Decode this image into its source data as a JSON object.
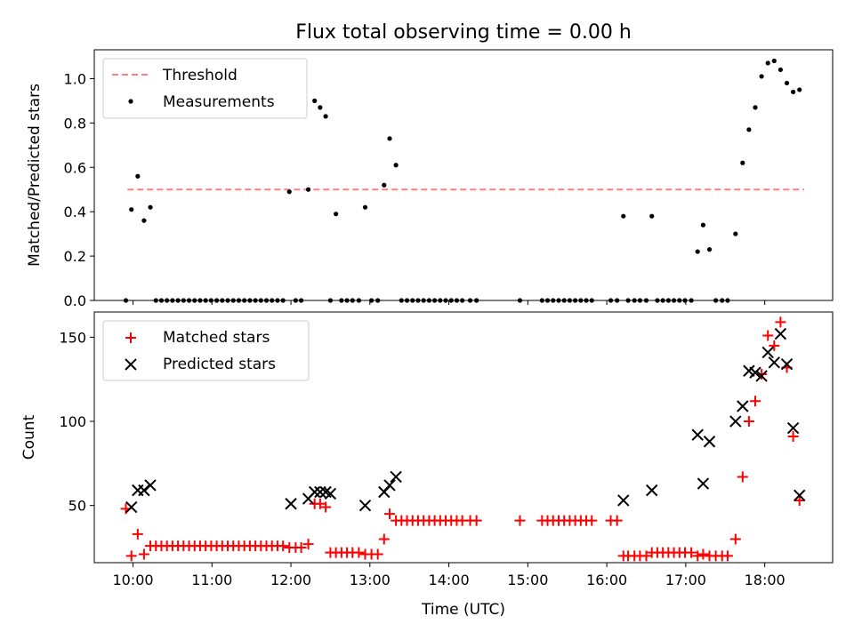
{
  "chart_data": [
    {
      "type": "scatter",
      "title": "Flux total observing time = 0.00 h",
      "xlabel": "",
      "ylabel": "Matched/Predicted stars",
      "xlim": [
        9.51,
        18.86
      ],
      "ylim": [
        0.0,
        1.13
      ],
      "yticks": [
        "0.0",
        "0.2",
        "0.4",
        "0.6",
        "0.8",
        "1.0"
      ],
      "xticks": [
        "10:00",
        "11:00",
        "12:00",
        "13:00",
        "14:00",
        "15:00",
        "16:00",
        "17:00",
        "18:00"
      ],
      "legend": {
        "position": "top-left",
        "entries": [
          "Threshold",
          "Measurements"
        ]
      },
      "threshold": {
        "name": "Threshold",
        "value": 0.5,
        "x_range": [
          9.93,
          18.5
        ],
        "color": "#ff7f7f"
      },
      "series": [
        {
          "name": "Measurements",
          "color": "#000000",
          "x": [
            9.91,
            9.98,
            10.06,
            10.14,
            10.22,
            10.29,
            10.36,
            10.43,
            10.5,
            10.57,
            10.64,
            10.71,
            10.78,
            10.85,
            10.92,
            10.99,
            11.06,
            11.13,
            11.2,
            11.27,
            11.34,
            11.41,
            11.48,
            11.55,
            11.62,
            11.69,
            11.76,
            11.83,
            11.9,
            11.98,
            12.06,
            12.13,
            12.22,
            12.3,
            12.37,
            12.44,
            12.5,
            12.57,
            12.64,
            12.71,
            12.78,
            12.86,
            12.94,
            13.02,
            13.1,
            13.18,
            13.25,
            13.33,
            13.4,
            13.47,
            13.54,
            13.61,
            13.68,
            13.75,
            13.82,
            13.89,
            13.96,
            14.03,
            14.1,
            14.17,
            14.27,
            14.35,
            14.9,
            15.18,
            15.25,
            15.32,
            15.39,
            15.46,
            15.53,
            15.6,
            15.67,
            15.74,
            15.81,
            16.05,
            16.13,
            16.21,
            16.27,
            16.35,
            16.42,
            16.5,
            16.57,
            16.64,
            16.71,
            16.78,
            16.85,
            16.92,
            16.99,
            17.07,
            17.15,
            17.22,
            17.3,
            17.38,
            17.46,
            17.53,
            17.63,
            17.72,
            17.8,
            17.88,
            17.96,
            18.04,
            18.12,
            18.2,
            18.28,
            18.36,
            18.44
          ],
          "y": [
            0.0,
            0.41,
            0.56,
            0.36,
            0.42,
            0.0,
            0.0,
            0.0,
            0.0,
            0.0,
            0.0,
            0.0,
            0.0,
            0.0,
            0.0,
            0.0,
            0.0,
            0.0,
            0.0,
            0.0,
            0.0,
            0.0,
            0.0,
            0.0,
            0.0,
            0.0,
            0.0,
            0.0,
            0.0,
            0.49,
            0.0,
            0.0,
            0.5,
            0.9,
            0.87,
            0.83,
            0.0,
            0.39,
            0.0,
            0.0,
            0.0,
            0.0,
            0.42,
            0.0,
            0.0,
            0.52,
            0.73,
            0.61,
            0.0,
            0.0,
            0.0,
            0.0,
            0.0,
            0.0,
            0.0,
            0.0,
            0.0,
            0.0,
            0.0,
            0.0,
            0.0,
            0.0,
            0.0,
            0.0,
            0.0,
            0.0,
            0.0,
            0.0,
            0.0,
            0.0,
            0.0,
            0.0,
            0.0,
            0.0,
            0.0,
            0.38,
            0.0,
            0.0,
            0.0,
            0.0,
            0.38,
            0.0,
            0.0,
            0.0,
            0.0,
            0.0,
            0.0,
            0.0,
            0.22,
            0.34,
            0.23,
            0.0,
            0.0,
            0.0,
            0.3,
            0.62,
            0.77,
            0.87,
            1.01,
            1.07,
            1.08,
            1.04,
            0.98,
            0.94,
            0.95
          ]
        }
      ]
    },
    {
      "type": "scatter",
      "title": "",
      "xlabel": "Time (UTC)",
      "ylabel": "Count",
      "xlim": [
        9.51,
        18.86
      ],
      "ylim": [
        16,
        165
      ],
      "yticks": [
        "50",
        "100",
        "150"
      ],
      "xticks": [
        "10:00",
        "11:00",
        "12:00",
        "13:00",
        "14:00",
        "15:00",
        "16:00",
        "17:00",
        "18:00"
      ],
      "legend": {
        "position": "top-left",
        "entries": [
          "Matched stars",
          "Predicted stars"
        ]
      },
      "series": [
        {
          "name": "Matched stars",
          "marker": "+",
          "color": "#ff0000",
          "x": [
            9.91,
            9.98,
            10.06,
            10.14,
            10.22,
            10.29,
            10.36,
            10.43,
            10.5,
            10.57,
            10.64,
            10.71,
            10.78,
            10.85,
            10.92,
            10.99,
            11.06,
            11.13,
            11.2,
            11.27,
            11.34,
            11.41,
            11.48,
            11.55,
            11.62,
            11.69,
            11.76,
            11.83,
            11.9,
            11.98,
            12.06,
            12.13,
            12.22,
            12.3,
            12.37,
            12.44,
            12.5,
            12.57,
            12.64,
            12.71,
            12.78,
            12.86,
            12.94,
            13.02,
            13.1,
            13.18,
            13.25,
            13.33,
            13.4,
            13.47,
            13.54,
            13.61,
            13.68,
            13.75,
            13.82,
            13.89,
            13.96,
            14.03,
            14.1,
            14.17,
            14.27,
            14.35,
            14.9,
            15.18,
            15.25,
            15.32,
            15.39,
            15.46,
            15.53,
            15.6,
            15.67,
            15.74,
            15.81,
            16.05,
            16.13,
            16.21,
            16.27,
            16.35,
            16.42,
            16.5,
            16.57,
            16.64,
            16.71,
            16.78,
            16.85,
            16.92,
            16.99,
            17.07,
            17.15,
            17.22,
            17.3,
            17.38,
            17.46,
            17.53,
            17.63,
            17.72,
            17.8,
            17.88,
            17.96,
            18.04,
            18.12,
            18.2,
            18.28,
            18.36,
            18.44
          ],
          "y": [
            48,
            20,
            33,
            21,
            26,
            26,
            26,
            26,
            26,
            26,
            26,
            26,
            26,
            26,
            26,
            26,
            26,
            26,
            26,
            26,
            26,
            26,
            26,
            26,
            26,
            26,
            26,
            26,
            26,
            25,
            25,
            25,
            27,
            51,
            51,
            49,
            22,
            22,
            22,
            22,
            22,
            22,
            21,
            21,
            21,
            30,
            45,
            41,
            41,
            41,
            41,
            41,
            41,
            41,
            41,
            41,
            41,
            41,
            41,
            41,
            41,
            41,
            41,
            41,
            41,
            41,
            41,
            41,
            41,
            41,
            41,
            41,
            41,
            41,
            41,
            20,
            20,
            20,
            20,
            20,
            22,
            22,
            22,
            22,
            22,
            22,
            22,
            22,
            20,
            21,
            20,
            20,
            20,
            20,
            30,
            67,
            100,
            112,
            128,
            151,
            145,
            159,
            132,
            91,
            53
          ]
        },
        {
          "name": "Predicted stars",
          "marker": "x",
          "color": "#000000",
          "x": [
            9.98,
            10.06,
            10.14,
            10.22,
            12.0,
            12.22,
            12.3,
            12.37,
            12.44,
            12.5,
            12.94,
            13.18,
            13.25,
            13.33,
            16.21,
            16.57,
            17.15,
            17.22,
            17.3,
            17.63,
            17.72,
            17.8,
            17.88,
            17.96,
            18.04,
            18.12,
            18.2,
            18.28,
            18.36,
            18.44
          ],
          "y": [
            49,
            59,
            59,
            62,
            51,
            54,
            58,
            58,
            58,
            57,
            50,
            58,
            62,
            67,
            53,
            59,
            92,
            63,
            88,
            100,
            109,
            130,
            129,
            127,
            141,
            135,
            152,
            134,
            96,
            56
          ]
        }
      ]
    }
  ]
}
